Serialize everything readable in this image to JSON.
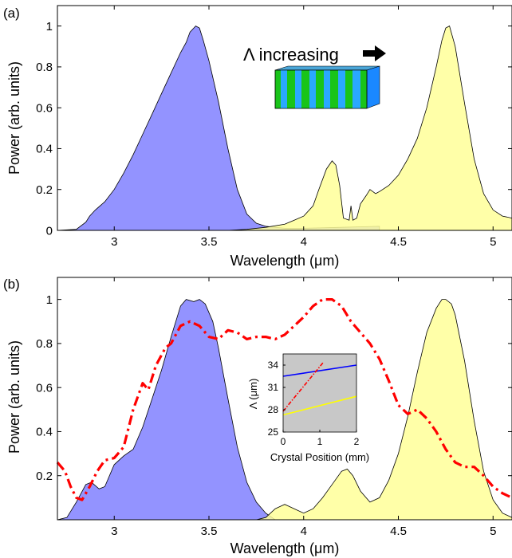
{
  "chart_data": [
    {
      "type": "area",
      "panel_label": "(a)",
      "xlabel": "Wavelength (μm)",
      "ylabel": "Power (arb. units)",
      "xlim": [
        2.7,
        5.1
      ],
      "ylim": [
        0,
        1.1
      ],
      "xticks": [
        3,
        3.5,
        4,
        4.5,
        5
      ],
      "yticks": [
        0,
        0.2,
        0.4,
        0.6,
        0.8,
        1
      ],
      "xtick_labels": [
        "3",
        "3.5",
        "4",
        "4.5",
        "5"
      ],
      "ytick_labels": [
        "0",
        "0.2",
        "0.4",
        "0.6",
        "0.8",
        "1"
      ],
      "annotation": "Λ increasing",
      "grid": false,
      "series": [
        {
          "color": "#8080ff",
          "x": [
            2.7,
            2.8,
            2.85,
            2.87,
            2.9,
            2.95,
            3.0,
            3.05,
            3.1,
            3.15,
            3.2,
            3.25,
            3.3,
            3.35,
            3.38,
            3.4,
            3.43,
            3.45,
            3.47,
            3.5,
            3.55,
            3.6,
            3.65,
            3.7,
            3.75,
            3.8,
            3.85,
            3.9,
            4.0,
            4.2,
            4.4
          ],
          "y": [
            0,
            0.005,
            0.04,
            0.07,
            0.1,
            0.14,
            0.2,
            0.28,
            0.37,
            0.47,
            0.57,
            0.67,
            0.77,
            0.87,
            0.92,
            0.97,
            1.0,
            0.99,
            0.93,
            0.83,
            0.63,
            0.4,
            0.2,
            0.08,
            0.035,
            0.02,
            0.015,
            0.01,
            0.01,
            0.015,
            0.02
          ]
        },
        {
          "color": "#ffff99",
          "x": [
            3.6,
            3.7,
            3.8,
            3.9,
            3.95,
            4.0,
            4.05,
            4.08,
            4.12,
            4.15,
            4.17,
            4.19,
            4.21,
            4.24,
            4.25,
            4.26,
            4.28,
            4.3,
            4.33,
            4.35,
            4.38,
            4.4,
            4.45,
            4.5,
            4.55,
            4.6,
            4.65,
            4.7,
            4.73,
            4.75,
            4.77,
            4.8,
            4.85,
            4.9,
            4.95,
            5.0,
            5.05,
            5.1
          ],
          "y": [
            0,
            0.005,
            0.015,
            0.03,
            0.05,
            0.07,
            0.12,
            0.2,
            0.3,
            0.34,
            0.32,
            0.22,
            0.06,
            0.05,
            0.12,
            0.05,
            0.06,
            0.13,
            0.17,
            0.2,
            0.18,
            0.19,
            0.22,
            0.27,
            0.35,
            0.45,
            0.6,
            0.8,
            0.93,
            0.99,
            1.0,
            0.9,
            0.62,
            0.35,
            0.18,
            0.1,
            0.07,
            0.06
          ]
        }
      ]
    },
    {
      "type": "area",
      "panel_label": "(b)",
      "xlabel": "Wavelength (μm)",
      "ylabel": "Power (arb. units)",
      "xlim": [
        2.7,
        5.1
      ],
      "ylim": [
        0,
        1.1
      ],
      "xticks": [
        3,
        3.5,
        4,
        4.5,
        5
      ],
      "yticks": [
        0.2,
        0.4,
        0.6,
        0.8,
        1
      ],
      "xtick_labels": [
        "3",
        "3.5",
        "4",
        "4.5",
        "5"
      ],
      "ytick_labels": [
        "0.2",
        "0.4",
        "0.6",
        "0.8",
        "1"
      ],
      "grid": false,
      "series": [
        {
          "color": "#8080ff",
          "x": [
            2.7,
            2.75,
            2.8,
            2.85,
            2.88,
            2.92,
            2.95,
            3.0,
            3.05,
            3.1,
            3.15,
            3.2,
            3.25,
            3.3,
            3.35,
            3.38,
            3.42,
            3.45,
            3.48,
            3.52,
            3.55,
            3.6,
            3.65,
            3.7,
            3.75,
            3.8,
            3.85
          ],
          "y": [
            0,
            0.01,
            0.08,
            0.16,
            0.17,
            0.14,
            0.15,
            0.25,
            0.29,
            0.32,
            0.42,
            0.55,
            0.68,
            0.83,
            0.97,
            1.0,
            0.99,
            1.0,
            0.98,
            0.9,
            0.78,
            0.55,
            0.33,
            0.17,
            0.08,
            0.03,
            0.0
          ]
        },
        {
          "color": "#ffff99",
          "x": [
            3.75,
            3.8,
            3.85,
            3.9,
            3.95,
            4.0,
            4.05,
            4.1,
            4.15,
            4.2,
            4.23,
            4.26,
            4.3,
            4.35,
            4.4,
            4.45,
            4.5,
            4.55,
            4.6,
            4.65,
            4.7,
            4.73,
            4.75,
            4.78,
            4.8,
            4.85,
            4.9,
            4.95,
            5.0,
            5.05,
            5.1
          ],
          "y": [
            0,
            0.01,
            0.05,
            0.07,
            0.05,
            0.03,
            0.05,
            0.1,
            0.16,
            0.22,
            0.23,
            0.2,
            0.13,
            0.08,
            0.1,
            0.18,
            0.3,
            0.47,
            0.67,
            0.85,
            0.96,
            1.0,
            1.0,
            0.98,
            0.93,
            0.72,
            0.45,
            0.22,
            0.09,
            0.03,
            0.01
          ]
        },
        {
          "color": "#ff0000",
          "style": "dash-dot",
          "x": [
            2.7,
            2.74,
            2.77,
            2.8,
            2.83,
            2.87,
            2.91,
            2.95,
            3.0,
            3.05,
            3.1,
            3.15,
            3.18,
            3.22,
            3.27,
            3.3,
            3.35,
            3.4,
            3.45,
            3.5,
            3.55,
            3.6,
            3.65,
            3.7,
            3.75,
            3.8,
            3.85,
            3.9,
            3.95,
            4.0,
            4.05,
            4.1,
            4.15,
            4.2,
            4.25,
            4.3,
            4.35,
            4.4,
            4.45,
            4.5,
            4.55,
            4.6,
            4.65,
            4.7,
            4.75,
            4.8,
            4.85,
            4.9,
            4.95,
            5.0,
            5.05,
            5.1
          ],
          "y": [
            0.26,
            0.22,
            0.15,
            0.1,
            0.09,
            0.15,
            0.22,
            0.27,
            0.28,
            0.33,
            0.5,
            0.62,
            0.59,
            0.7,
            0.78,
            0.8,
            0.88,
            0.9,
            0.88,
            0.83,
            0.82,
            0.86,
            0.85,
            0.82,
            0.83,
            0.83,
            0.82,
            0.84,
            0.88,
            0.92,
            0.97,
            1.0,
            1.0,
            0.97,
            0.9,
            0.85,
            0.8,
            0.73,
            0.63,
            0.52,
            0.48,
            0.5,
            0.46,
            0.4,
            0.32,
            0.26,
            0.24,
            0.24,
            0.2,
            0.15,
            0.12,
            0.1
          ]
        }
      ],
      "inset": {
        "xlabel": "Crystal Position (mm)",
        "ylabel": "Λ (μm)",
        "xlim": [
          0,
          2
        ],
        "ylim": [
          25,
          35.5
        ],
        "xticks": [
          0,
          1,
          2
        ],
        "yticks": [
          25,
          28,
          31,
          34
        ],
        "xtick_labels": [
          "0",
          "1",
          "2"
        ],
        "ytick_labels": [
          "25",
          "28",
          "31",
          "34"
        ],
        "background": "#c8c8c8",
        "series": [
          {
            "color": "#0000ff",
            "style": "solid",
            "x": [
              0,
              2
            ],
            "y": [
              32.5,
              34.0
            ]
          },
          {
            "color": "#ffff00",
            "style": "solid",
            "x": [
              0,
              2
            ],
            "y": [
              27.3,
              29.8
            ]
          },
          {
            "color": "#ff0000",
            "style": "dash-dot",
            "x": [
              0,
              1.1
            ],
            "y": [
              27.8,
              34.4
            ]
          }
        ]
      }
    }
  ]
}
